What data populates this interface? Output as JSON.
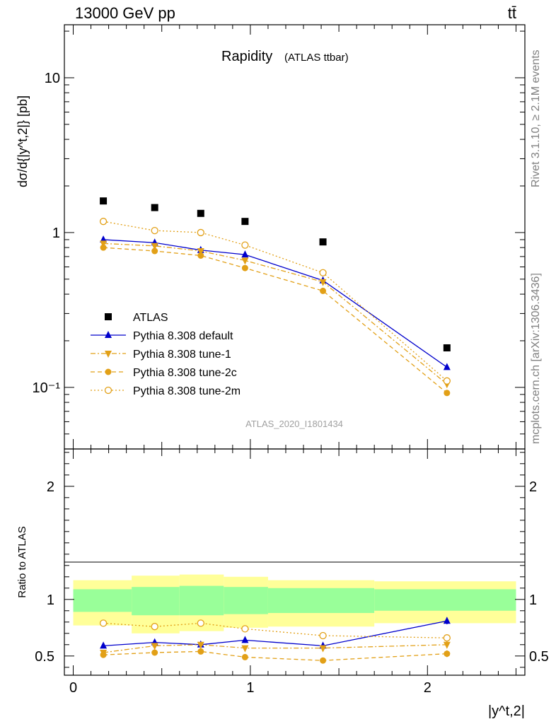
{
  "header": {
    "left": "13000 GeV pp",
    "right": "tt̄"
  },
  "side_labels": {
    "rivet": "Rivet 3.1.10, ≥ 2.1M events",
    "mcplots": "mcplots.cern.ch [arXiv:1306.3436]"
  },
  "chart_data": [
    {
      "type": "scatter",
      "title": "Rapidity",
      "subtitle": "(ATLAS ttbar)",
      "watermark": "ATLAS_2020_I1801434",
      "ylabel": "dσ/d{|y^t,2|} [pb]",
      "yscale": "log",
      "ylim": [
        0.04,
        22
      ],
      "xlim": [
        -0.05,
        2.55
      ],
      "yticks": [
        {
          "value": 0.1,
          "label": "10⁻¹"
        },
        {
          "value": 1,
          "label": "1"
        },
        {
          "value": 10,
          "label": "10"
        }
      ],
      "legend_position": "bottom-left",
      "x": [
        0.17,
        0.46,
        0.72,
        0.97,
        1.41,
        2.11
      ],
      "series": [
        {
          "name": "ATLAS",
          "color": "#000000",
          "marker": "square",
          "line": "none",
          "values": [
            1.6,
            1.45,
            1.33,
            1.18,
            0.87,
            0.18
          ]
        },
        {
          "name": "Pythia 8.308 default",
          "color": "#0000cc",
          "marker": "triangle-up",
          "line": "solid",
          "values": [
            0.9,
            0.86,
            0.77,
            0.72,
            0.49,
            0.135
          ]
        },
        {
          "name": "Pythia 8.308 tune-1",
          "color": "#e2a017",
          "marker": "triangle-down",
          "line": "dashdot",
          "values": [
            0.85,
            0.82,
            0.76,
            0.66,
            0.48,
            0.105
          ]
        },
        {
          "name": "Pythia 8.308 tune-2c",
          "color": "#e2a017",
          "marker": "circle",
          "line": "dashed",
          "values": [
            0.8,
            0.76,
            0.71,
            0.59,
            0.42,
            0.092
          ]
        },
        {
          "name": "Pythia 8.308 tune-2m",
          "color": "#e2a017",
          "marker": "circle-open",
          "line": "dotted",
          "values": [
            1.18,
            1.03,
            1.0,
            0.83,
            0.55,
            0.11
          ]
        }
      ]
    },
    {
      "type": "line",
      "ylabel": "Ratio to ATLAS",
      "xlabel": "|y^t,2|",
      "ylim": [
        0.33,
        2.33
      ],
      "xlim": [
        -0.05,
        2.55
      ],
      "yticks": [
        {
          "value": 0.5,
          "label": "0.5"
        },
        {
          "value": 1,
          "label": "1"
        },
        {
          "value": 2,
          "label": "2"
        }
      ],
      "xticks": [
        {
          "value": 0,
          "label": "0"
        },
        {
          "value": 1,
          "label": "1"
        },
        {
          "value": 2,
          "label": "2"
        }
      ],
      "bins": [
        [
          0.0,
          0.33
        ],
        [
          0.33,
          0.6
        ],
        [
          0.6,
          0.85
        ],
        [
          0.85,
          1.1
        ],
        [
          1.1,
          1.7
        ],
        [
          1.7,
          2.5
        ]
      ],
      "band_inner": [
        [
          0.89,
          1.09
        ],
        [
          0.86,
          1.11
        ],
        [
          0.86,
          1.12
        ],
        [
          0.87,
          1.11
        ],
        [
          0.88,
          1.1
        ],
        [
          0.9,
          1.09
        ]
      ],
      "band_outer": [
        [
          0.77,
          1.17
        ],
        [
          0.7,
          1.21
        ],
        [
          0.72,
          1.22
        ],
        [
          0.75,
          1.2
        ],
        [
          0.76,
          1.17
        ],
        [
          0.79,
          1.16
        ]
      ],
      "band_colors": {
        "inner": "#99ff99",
        "outer": "#ffff99"
      },
      "x": [
        0.17,
        0.46,
        0.72,
        0.97,
        1.41,
        2.11
      ],
      "series": [
        {
          "name": "Pythia 8.308 default",
          "color": "#0000cc",
          "marker": "triangle-up",
          "line": "solid",
          "values": [
            0.59,
            0.62,
            0.6,
            0.64,
            0.59,
            0.81
          ],
          "errors": [
            0.02,
            0.02,
            0.02,
            0.025,
            0.02,
            0.03
          ]
        },
        {
          "name": "Pythia 8.308 tune-1",
          "color": "#e2a017",
          "marker": "triangle-down",
          "line": "dashdot",
          "values": [
            0.53,
            0.59,
            0.6,
            0.57,
            0.57,
            0.6
          ],
          "errors": [
            0.02,
            0.02,
            0.02,
            0.02,
            0.02,
            0.03
          ]
        },
        {
          "name": "Pythia 8.308 tune-2c",
          "color": "#e2a017",
          "marker": "circle",
          "line": "dashed",
          "values": [
            0.51,
            0.53,
            0.54,
            0.49,
            0.46,
            0.52
          ],
          "errors": [
            0.02,
            0.02,
            0.02,
            0.02,
            0.02,
            0.03
          ]
        },
        {
          "name": "Pythia 8.308 tune-2m",
          "color": "#e2a017",
          "marker": "circle-open",
          "line": "dotted",
          "values": [
            0.79,
            0.76,
            0.79,
            0.74,
            0.68,
            0.66
          ],
          "errors": [
            0.01,
            0.01,
            0.01,
            0.01,
            0.01,
            0.01
          ]
        }
      ]
    }
  ]
}
